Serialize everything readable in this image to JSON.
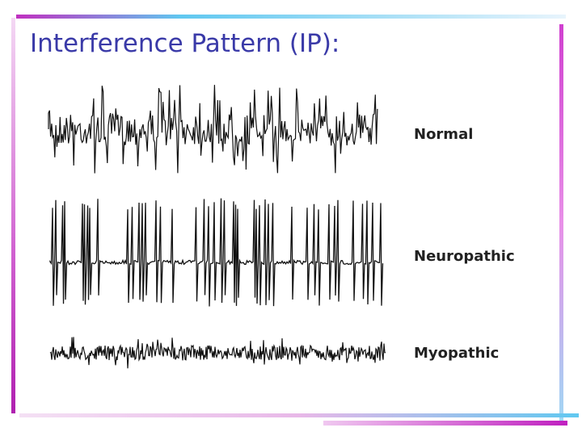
{
  "header": {
    "title": "Interference Pattern (IP):"
  },
  "traces": [
    {
      "label": "Normal"
    },
    {
      "label": "Neuropathic"
    },
    {
      "label": "Myopathic"
    }
  ]
}
